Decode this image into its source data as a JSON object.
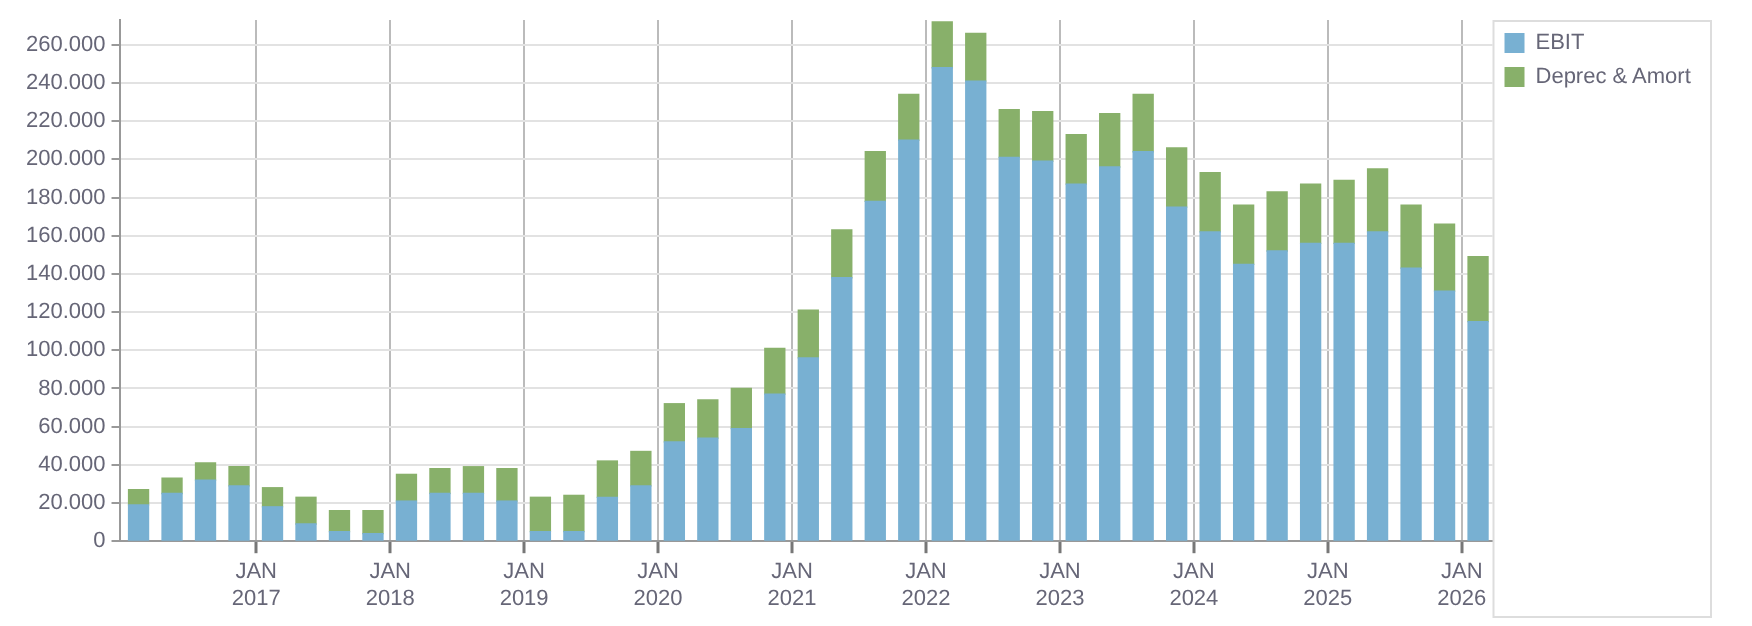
{
  "chart_data": {
    "type": "bar",
    "stacked": true,
    "x": [
      "2016-02-15",
      "2016-05-15",
      "2016-08-15",
      "2016-11-15",
      "2017-02-15",
      "2017-05-15",
      "2017-08-15",
      "2017-11-15",
      "2018-02-15",
      "2018-05-15",
      "2018-08-15",
      "2018-11-15",
      "2019-02-15",
      "2019-05-15",
      "2019-08-15",
      "2019-11-15",
      "2020-02-15",
      "2020-05-15",
      "2020-08-15",
      "2020-11-15",
      "2021-02-15",
      "2021-05-15",
      "2021-08-15",
      "2021-11-15",
      "2022-02-15",
      "2022-05-15",
      "2022-08-15",
      "2022-11-15",
      "2023-02-15",
      "2023-05-15",
      "2023-08-15",
      "2023-11-15",
      "2024-02-15",
      "2024-05-15",
      "2024-08-15",
      "2024-11-15",
      "2025-02-15",
      "2025-05-15",
      "2025-08-15",
      "2025-11-15",
      "2026-02-15"
    ],
    "series": [
      {
        "name": "EBIT",
        "color": "#78b0d2",
        "values": [
          19000,
          25000,
          32000,
          29000,
          18000,
          9000,
          5000,
          4000,
          21000,
          25000,
          25000,
          21000,
          5000,
          5000,
          23000,
          29000,
          52000,
          54000,
          59000,
          77000,
          96000,
          138000,
          178000,
          210000,
          248000,
          241000,
          201000,
          199000,
          187000,
          196000,
          204000,
          175000,
          162000,
          145000,
          152000,
          156000,
          156000,
          162000,
          143000,
          131000,
          115000
        ]
      },
      {
        "name": "Deprec & Amort",
        "color": "#88b06a",
        "values": [
          8000,
          8000,
          9000,
          10000,
          10000,
          14000,
          11000,
          12000,
          14000,
          13000,
          14000,
          17000,
          18000,
          19000,
          19000,
          18000,
          20000,
          20000,
          21000,
          24000,
          25000,
          25000,
          26000,
          24000,
          24000,
          25000,
          25000,
          26000,
          26000,
          28000,
          30000,
          31000,
          31000,
          31000,
          31000,
          31000,
          33000,
          33000,
          33000,
          35000,
          34000
        ]
      }
    ],
    "xlim": [
      "2015-12-24",
      "2026-03-24"
    ],
    "xticks": [
      {
        "value": "2017-01",
        "label": "JAN 2017"
      },
      {
        "value": "2018-01",
        "label": "JAN 2018"
      },
      {
        "value": "2019-01",
        "label": "JAN 2019"
      },
      {
        "value": "2020-01",
        "label": "JAN 2020"
      },
      {
        "value": "2021-01",
        "label": "JAN 2021"
      },
      {
        "value": "2022-01",
        "label": "JAN 2022"
      },
      {
        "value": "2023-01",
        "label": "JAN 2023"
      },
      {
        "value": "2024-01",
        "label": "JAN 2024"
      },
      {
        "value": "2025-01",
        "label": "JAN 2025"
      },
      {
        "value": "2026-01",
        "label": "JAN 2026"
      }
    ],
    "ylim": [
      0,
      273000
    ],
    "yticks": [
      0,
      {
        "value": 20000,
        "label": "20.000"
      },
      {
        "value": 40000,
        "label": "40.000"
      },
      {
        "value": 60000,
        "label": "60.000"
      },
      {
        "value": 80000,
        "label": "80.000"
      },
      {
        "value": 100000,
        "label": "100.000"
      },
      {
        "value": 120000,
        "label": "120.000"
      },
      {
        "value": 140000,
        "label": "140.000"
      },
      {
        "value": 160000,
        "label": "160.000"
      },
      {
        "value": 180000,
        "label": "180.000"
      },
      {
        "value": 200000,
        "label": "200.000"
      },
      {
        "value": 220000,
        "label": "220.000"
      },
      {
        "value": 240000,
        "label": "240.000"
      },
      {
        "value": 260000,
        "label": "260.000"
      }
    ],
    "grid": true,
    "legend": "top right"
  }
}
